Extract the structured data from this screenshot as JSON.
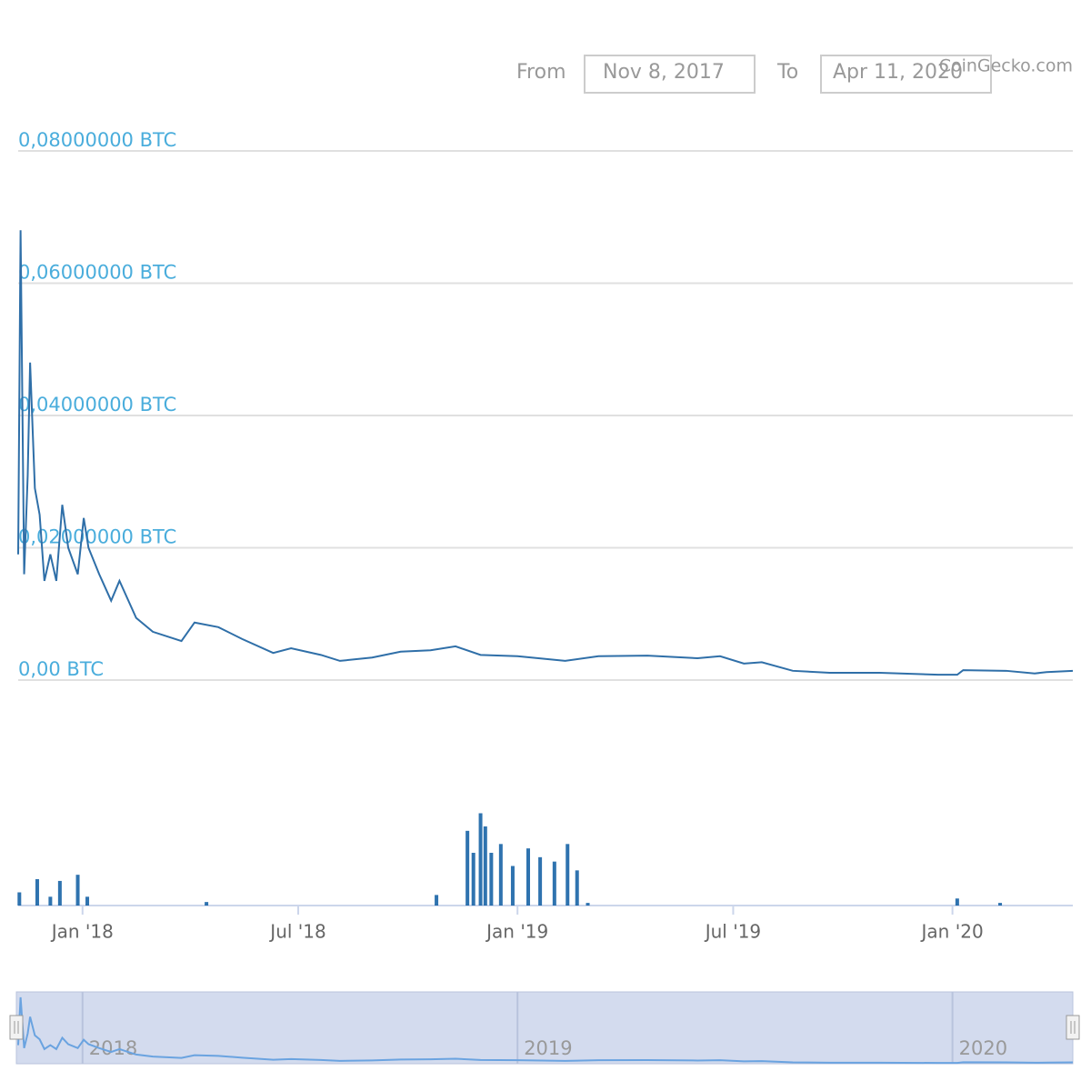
{
  "range_selector": {
    "from_label": "From",
    "from_value": "Nov 8, 2017",
    "to_label": "To",
    "to_value": "Apr 11, 2020",
    "credit": "CoinGecko.com"
  },
  "chart_data": {
    "type": "line",
    "xlim": [
      "2017-11-08",
      "2020-04-11"
    ],
    "xticks": [
      {
        "value": "2018-01-01",
        "label": "Jan '18"
      },
      {
        "value": "2018-07-01",
        "label": "Jul '18"
      },
      {
        "value": "2019-01-01",
        "label": "Jan '19"
      },
      {
        "value": "2019-07-01",
        "label": "Jul '19"
      },
      {
        "value": "2020-01-01",
        "label": "Jan '20"
      }
    ],
    "ylim": [
      0,
      0.08
    ],
    "yticks": [
      {
        "value": 0,
        "label": "0,00 BTC"
      },
      {
        "value": 0.02,
        "label": "0,02000000 BTC"
      },
      {
        "value": 0.04,
        "label": "0,04000000 BTC"
      },
      {
        "value": 0.06,
        "label": "0,06000000 BTC"
      },
      {
        "value": 0.08,
        "label": "0,08000000 BTC"
      }
    ],
    "grid": true,
    "y2lim": [
      0,
      120
    ],
    "series": [
      {
        "color": "#2f6fa8",
        "x": [
          "2017-11-08",
          "2017-11-10",
          "2017-11-13",
          "2017-11-16",
          "2017-11-18",
          "2017-11-22",
          "2017-11-26",
          "2017-11-30",
          "2017-12-05",
          "2017-12-10",
          "2017-12-15",
          "2017-12-20",
          "2017-12-28",
          "2018-01-02",
          "2018-01-06",
          "2018-01-15",
          "2018-01-25",
          "2018-02-01",
          "2018-02-15",
          "2018-03-01",
          "2018-03-25",
          "2018-04-05",
          "2018-04-25",
          "2018-05-15",
          "2018-06-10",
          "2018-06-25",
          "2018-07-20",
          "2018-08-05",
          "2018-09-01",
          "2018-09-25",
          "2018-10-20",
          "2018-11-10",
          "2018-12-01",
          "2019-01-01",
          "2019-02-10",
          "2019-03-10",
          "2019-04-20",
          "2019-06-01",
          "2019-06-20",
          "2019-07-10",
          "2019-07-25",
          "2019-08-20",
          "2019-09-20",
          "2019-11-01",
          "2019-12-20",
          "2020-01-05",
          "2020-01-10",
          "2020-02-15",
          "2020-03-10",
          "2020-03-20",
          "2020-04-11"
        ],
        "values": [
          0.019,
          0.068,
          0.016,
          0.031,
          0.048,
          0.029,
          0.025,
          0.015,
          0.019,
          0.015,
          0.0265,
          0.02,
          0.016,
          0.0245,
          0.02,
          0.016,
          0.012,
          0.015,
          0.0094,
          0.0073,
          0.0059,
          0.0087,
          0.008,
          0.0062,
          0.0041,
          0.0048,
          0.0038,
          0.0029,
          0.0034,
          0.0043,
          0.0045,
          0.0051,
          0.0038,
          0.0036,
          0.0029,
          0.0036,
          0.0037,
          0.0033,
          0.0036,
          0.0025,
          0.0027,
          0.0014,
          0.0011,
          0.0011,
          0.0008,
          0.0008,
          0.0015,
          0.0014,
          0.001,
          0.0012,
          0.0014
        ]
      },
      {
        "type": "bar",
        "axis": "y2",
        "color": "#0b5aa1",
        "x": [
          "2017-11-09",
          "2017-11-24",
          "2017-12-05",
          "2017-12-13",
          "2017-12-28",
          "2018-01-05",
          "2018-04-15",
          "2018-10-25",
          "2018-11-20",
          "2018-11-25",
          "2018-12-01",
          "2018-12-05",
          "2018-12-10",
          "2018-12-18",
          "2018-12-28",
          "2019-01-10",
          "2019-01-20",
          "2019-02-01",
          "2019-02-12",
          "2019-02-20",
          "2019-03-01",
          "2020-01-05",
          "2020-02-10"
        ],
        "values": [
          15,
          30,
          10,
          28,
          35,
          10,
          4,
          12,
          85,
          60,
          105,
          90,
          60,
          70,
          45,
          65,
          55,
          50,
          70,
          40,
          3,
          8,
          3
        ]
      }
    ],
    "navigator": {
      "xticks": [
        {
          "value": "2018-01-01",
          "label": "2018"
        },
        {
          "value": "2019-01-01",
          "label": "2019"
        },
        {
          "value": "2020-01-01",
          "label": "2020"
        }
      ]
    }
  }
}
